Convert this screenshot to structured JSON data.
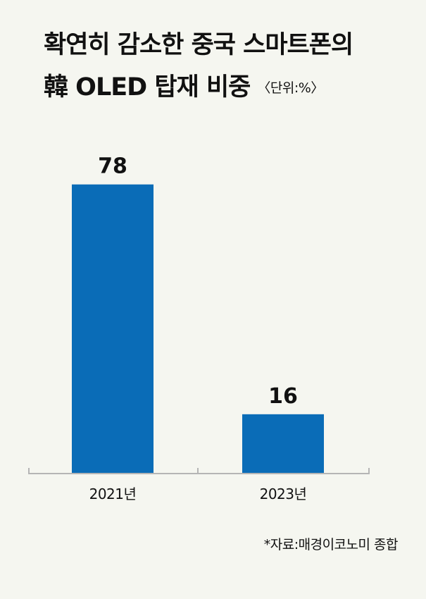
{
  "title": {
    "line1": "확연히 감소한 중국 스마트폰의",
    "line2": "韓 OLED 탑재 비중",
    "unit": "〈단위:%〉"
  },
  "source": "*자료:매경이코노미 종합",
  "colors": {
    "bar": "#0a6cb7",
    "axis": "#b5b5b5",
    "background": "#f5f6f0"
  },
  "chart_data": {
    "type": "bar",
    "categories": [
      "2021년",
      "2023년"
    ],
    "values": [
      78,
      16
    ],
    "title": "확연히 감소한 중국 스마트폰의 韓 OLED 탑재 비중",
    "unit": "〈단위:%〉",
    "xlabel": "",
    "ylabel": "",
    "ylim": [
      0,
      100
    ],
    "grid": false,
    "legend": "none",
    "data_labels": true
  }
}
